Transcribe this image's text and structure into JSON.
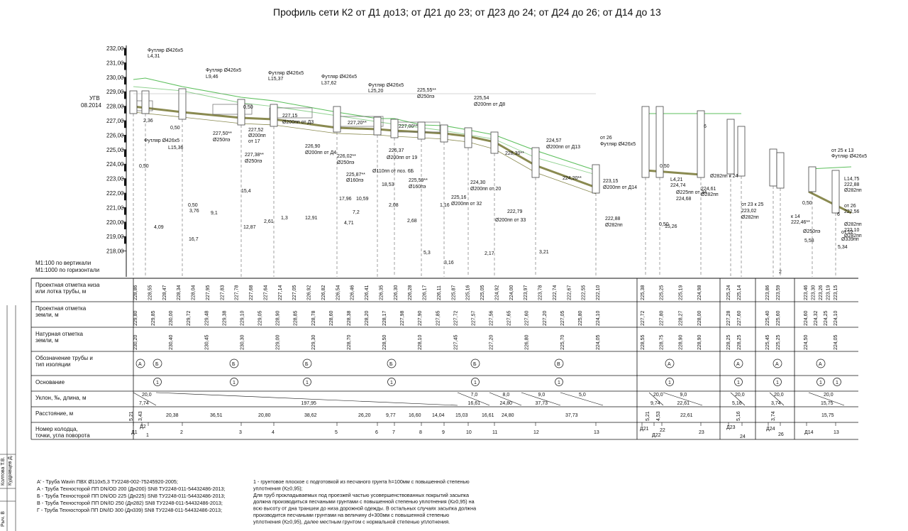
{
  "title": "Профиль сети К2 от Д1 до13; от Д21 до 23; от Д23 до 24; от Д24 до 26; от Д14 до 13",
  "ugv_label": "УГВ",
  "ugv_date": "08.2014",
  "scale_vertical": "М1:100 по вертикали",
  "scale_horizontal": "М1:1000 по горизонтали",
  "elevation_ticks": [
    "232,00",
    "231,00",
    "230,00",
    "229,00",
    "228,00",
    "227,00",
    "226,00",
    "225,00",
    "224,00",
    "223,00",
    "222,00",
    "221,00",
    "220,00",
    "219,00",
    "218,00"
  ],
  "row_labels": {
    "design_pipe": [
      "Проектная отметка низа",
      "или лотка трубы, м"
    ],
    "design_ground": [
      "Проектная отметка",
      "земли, м"
    ],
    "natural_ground": [
      "Натурная отметка",
      "земли, м"
    ],
    "pipe_type": [
      "Обозначение трубы и",
      "тип изоляции"
    ],
    "base": [
      "Основание"
    ],
    "slope": [
      "Уклон, ‰, длина, м"
    ],
    "distance": [
      "Расстояние, м"
    ],
    "well_no": [
      "Номер колодца,",
      "точки, угла поворота"
    ]
  },
  "design_pipe_values": [
    "228,86",
    "228,55",
    "228,47",
    "228,34",
    "228,04",
    "227,95",
    "227,83",
    "227,78",
    "227,68",
    "227,64",
    "227,14",
    "227,05",
    "226,92",
    "226,82",
    "226,54",
    "226,46",
    "226,41",
    "226,35",
    "226,30",
    "226,28",
    "226,17",
    "226,11",
    "225,87",
    "225,16",
    "225,05",
    "224,92",
    "224,00",
    "223,97",
    "223,78",
    "222,74",
    "222,67",
    "222,55",
    "222,10",
    "225,38",
    "225,25",
    "225,19",
    "224,98",
    "225,24",
    "225,14",
    "223,86",
    "223,59",
    "223,46",
    "223,30",
    "223,26",
    "223,19",
    "223,15"
  ],
  "design_ground_values": [
    "229,80",
    "229,85",
    "230,00",
    "229,72",
    "229,48",
    "229,38",
    "229,10",
    "229,05",
    "228,90",
    "228,85",
    "228,78",
    "228,60",
    "228,38",
    "228,20",
    "228,17",
    "227,98",
    "227,90",
    "227,85",
    "227,72",
    "227,57",
    "227,56",
    "227,65",
    "227,60",
    "227,20",
    "227,05",
    "225,80",
    "224,10",
    "227,72",
    "227,80",
    "228,27",
    "228,00",
    "227,28",
    "227,60",
    "225,40",
    "225,60",
    "224,60",
    "224,32",
    "224,25",
    "224,10"
  ],
  "natural_ground_values": [
    "230,20",
    "230,40",
    "230,45",
    "230,30",
    "229,00",
    "229,30",
    "228,70",
    "228,50",
    "228,10",
    "227,45",
    "227,20",
    "226,80",
    "225,70",
    "224,05",
    "228,55",
    "228,75",
    "228,90",
    "228,90",
    "228,25",
    "228,25",
    "225,45",
    "225,25",
    "224,50",
    "224,05"
  ],
  "pipe_types": [
    "А",
    "Б",
    "Б",
    "Б",
    "Б",
    "Б",
    "В",
    "А",
    "А",
    "А",
    "А"
  ],
  "base_marks": [
    "1",
    "1",
    "1",
    "1",
    "1",
    "1",
    "1",
    "1",
    "1",
    "1",
    "1"
  ],
  "slopes": [
    {
      "slope": "20,0",
      "len": "7,74"
    },
    {
      "slope": "",
      "len": "197,95"
    },
    {
      "slope": "7,0",
      "len": "16,61"
    },
    {
      "slope": "8,0",
      "len": "24,80"
    },
    {
      "slope": "9,0",
      "len": "37,73"
    },
    {
      "slope": "5,0",
      "len": ""
    },
    {
      "slope": "20,0",
      "len": "9,74"
    },
    {
      "slope": "9,0",
      "len": "22,61"
    },
    {
      "slope": "20,0",
      "len": "5,16"
    },
    {
      "slope": "20,0",
      "len": "3,74"
    },
    {
      "slope": "20,0",
      "len": "15,75"
    }
  ],
  "distances": [
    "5,21",
    "3,43",
    "20,38",
    "36,51",
    "20,80",
    "38,62",
    "26,20",
    "9,77",
    "16,60",
    "14,04",
    "15,03",
    "16,61",
    "24,80",
    "37,73",
    "5,21",
    "4,53",
    "22,61",
    "5,16",
    "3,74",
    "15,75"
  ],
  "wells": [
    "Д1",
    "Д2",
    "1",
    "2",
    "3",
    "4",
    "5",
    "6",
    "7",
    "8",
    "9",
    "10",
    "11",
    "12",
    "13",
    "Д21",
    "Д22",
    "22",
    "23",
    "Д23",
    "24",
    "Д24",
    "26",
    "Д14",
    "13"
  ],
  "plan_labels": [
    {
      "t": "Футляр Ø426х5"
    },
    {
      "t": "L4,31"
    },
    {
      "t": "Футляр Ø426х5"
    },
    {
      "t": "L9,46"
    },
    {
      "t": "Футляр Ø426х5"
    },
    {
      "t": "L15,37"
    },
    {
      "t": "Футляр Ø426х5"
    },
    {
      "t": "L37,62"
    },
    {
      "t": "Футляр Ø426х5"
    },
    {
      "t": "L25,20"
    },
    {
      "t": "Футляр Ø426х5"
    },
    {
      "t": "L15,36"
    },
    {
      "t": "227,15"
    },
    {
      "t": "Ø200пп от Д3"
    },
    {
      "t": "227,52"
    },
    {
      "t": "Ø200пп"
    },
    {
      "t": "от 17"
    },
    {
      "t": "227,50**"
    },
    {
      "t": "Ø250пэ"
    },
    {
      "t": "227,38**"
    },
    {
      "t": "Ø250пэ"
    },
    {
      "t": "226,90"
    },
    {
      "t": "Ø200пп от Д4"
    },
    {
      "t": "227,20**"
    },
    {
      "t": "227,00**"
    },
    {
      "t": "226,02**"
    },
    {
      "t": "Ø250пэ"
    },
    {
      "t": "225,87**"
    },
    {
      "t": "Ø160пэ"
    },
    {
      "t": "Ø110пп от поз. 6Б"
    },
    {
      "t": "226,37"
    },
    {
      "t": "Ø200пп от 19"
    },
    {
      "t": "225,59**"
    },
    {
      "t": "Ø160пэ"
    },
    {
      "t": "225,55**"
    },
    {
      "t": "Ø250пэ"
    },
    {
      "t": "225,54"
    },
    {
      "t": "Ø200пп от Д8"
    },
    {
      "t": "225,16"
    },
    {
      "t": "Ø200пп от 32"
    },
    {
      "t": "224,30"
    },
    {
      "t": "Ø200пп от 20"
    },
    {
      "t": "228,30**"
    },
    {
      "t": "224,57"
    },
    {
      "t": "Ø200пп от Д13"
    },
    {
      "t": "224,20**"
    },
    {
      "t": "223,15"
    },
    {
      "t": "Ø200пп от Д14"
    },
    {
      "t": "222,79"
    },
    {
      "t": "Ø200пп от 33"
    },
    {
      "t": "222,88"
    },
    {
      "t": "Ø282пп"
    },
    {
      "t": "от 26"
    },
    {
      "t": "Футляр Ø426х5"
    },
    {
      "t": "L4,21"
    },
    {
      "t": "224,74"
    },
    {
      "t": "Ø225пп от 34"
    },
    {
      "t": "224,68"
    },
    {
      "t": "Ø282пп к 24"
    },
    {
      "t": "224,61"
    },
    {
      "t": "Ø282пп"
    },
    {
      "t": "от 23 к 25"
    },
    {
      "t": "223,02"
    },
    {
      "t": "Ø282пп"
    },
    {
      "t": "от 25 к 13"
    },
    {
      "t": "Футляр Ø426х5"
    },
    {
      "t": "L14,75"
    },
    {
      "t": "222,88"
    },
    {
      "t": "Ø282пп"
    },
    {
      "t": "от 26"
    },
    {
      "t": "222,56"
    },
    {
      "t": "Ø282пп"
    },
    {
      "t": "222,10"
    },
    {
      "t": "Ø282пп"
    },
    {
      "t": "от 12"
    },
    {
      "t": "Ø339пп"
    },
    {
      "t": "к 14"
    },
    {
      "t": "222,46**"
    },
    {
      "t": "Ø250пэ"
    },
    {
      "t": "5,58"
    },
    {
      "t": "5,34"
    },
    {
      "t": "2,36"
    },
    {
      "t": "0,50"
    },
    {
      "t": "0,50"
    },
    {
      "t": "0,50"
    },
    {
      "t": "0,50"
    },
    {
      "t": "0,50"
    },
    {
      "t": "0,50"
    },
    {
      "t": "0,50"
    },
    {
      "t": "3,76"
    },
    {
      "t": "9,1"
    },
    {
      "t": "16,7"
    },
    {
      "t": "15,4"
    },
    {
      "t": "12,87"
    },
    {
      "t": "2,61"
    },
    {
      "t": "1,3"
    },
    {
      "t": "12,91"
    },
    {
      "t": "17,96"
    },
    {
      "t": "10,59"
    },
    {
      "t": "7,2"
    },
    {
      "t": "4,71"
    },
    {
      "t": "18,53"
    },
    {
      "t": "2,08"
    },
    {
      "t": "2,68"
    },
    {
      "t": "1,16"
    },
    {
      "t": "5,3"
    },
    {
      "t": "3,16"
    },
    {
      "t": "2,17"
    },
    {
      "t": "3,21"
    },
    {
      "t": "15,26"
    },
    {
      "t": "4,09"
    },
    {
      "t": "2"
    },
    {
      "t": "6"
    },
    {
      "t": "6"
    }
  ],
  "notes_left": [
    "А' - Труба Wavin ПВХ Ø110х5,3 ТУ2248-002-75245920-2005;",
    "А - Труба Техносторой ПП DN/OD 200 (Дн200) SN8 ТУ2248-011-54432486-2013;",
    "Б - Труба Техносторой ПП DN/OD 225 (Дн225) SN8 ТУ2248-011-54432486-2013;",
    "В - Труба Техносторой ПП DN/ID 250 (Дн282) SN8 ТУ2248-011-54432486-2013;",
    "Г - Труба Техносторой ПП DN/ID 300 (Дн339) SN8 ТУ2248-011-54432486-2013;"
  ],
  "notes_right": [
    "1 - грунтовое плоское  с подготовкой из песчаного грунта h=100мм с повышенной степенью",
    "уплотнения (К≥0,95);",
    "Для труб прокладываемых под проезжей частью усовершенствованных покрытий  засыпка",
    "должна производиться песчаными грунтами с повышенной степенью уплотнения (К≥0,95) на",
    "всю высоту от дна траншеи до низа дорожной одежды. В остальных случаях засыпка должна",
    "производится песчаными грунтами  на величину d+300мм с повышенной степенью",
    "уплотнения (К≥0,95), далее местным грунтом с нормальной степенью уплотнения."
  ],
  "side_stamp": [
    "Рыч. В",
    "Колтова Т.В.",
    "Кудрявцев Д."
  ]
}
